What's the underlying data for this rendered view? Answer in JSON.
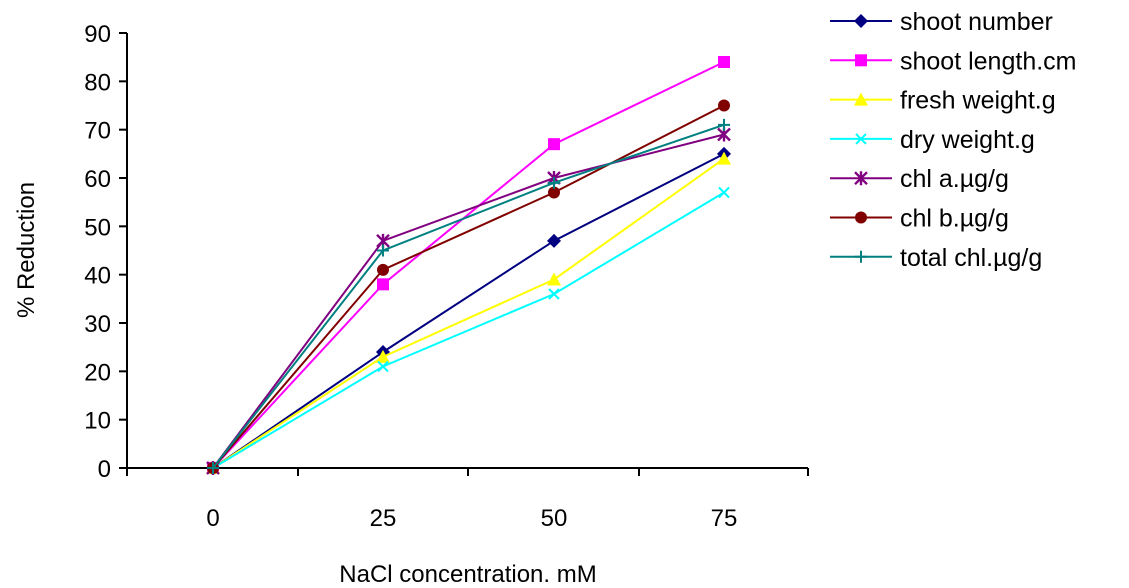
{
  "chart_data": {
    "type": "line",
    "title": "",
    "xlabel": "NaCl concentration. mM",
    "ylabel": "% Reduction",
    "categories": [
      "0",
      "25",
      "50",
      "75"
    ],
    "ylim": [
      0,
      90
    ],
    "yticks": [
      "0",
      "10",
      "20",
      "30",
      "40",
      "50",
      "60",
      "70",
      "80",
      "90"
    ],
    "grid": false,
    "legend_position": "right",
    "series": [
      {
        "name": "shoot number",
        "values": [
          0,
          24,
          47,
          65
        ],
        "color": "#000080",
        "marker": "diamond"
      },
      {
        "name": "shoot length.cm",
        "values": [
          0,
          38,
          67,
          84
        ],
        "color": "#ff00ff",
        "marker": "square"
      },
      {
        "name": "fresh weight.g",
        "values": [
          0,
          23,
          39,
          64
        ],
        "color": "#ffff00",
        "marker": "triangle"
      },
      {
        "name": "dry weight.g",
        "values": [
          0,
          21,
          36,
          57
        ],
        "color": "#00ffff",
        "marker": "x"
      },
      {
        "name": "chl a.µg/g",
        "values": [
          0,
          47,
          60,
          69
        ],
        "color": "#800080",
        "marker": "star"
      },
      {
        "name": "chl b.µg/g",
        "values": [
          0,
          41,
          57,
          75
        ],
        "color": "#800000",
        "marker": "circle"
      },
      {
        "name": "total chl.µg/g",
        "values": [
          0,
          45,
          59,
          71
        ],
        "color": "#008080",
        "marker": "plus"
      }
    ]
  }
}
